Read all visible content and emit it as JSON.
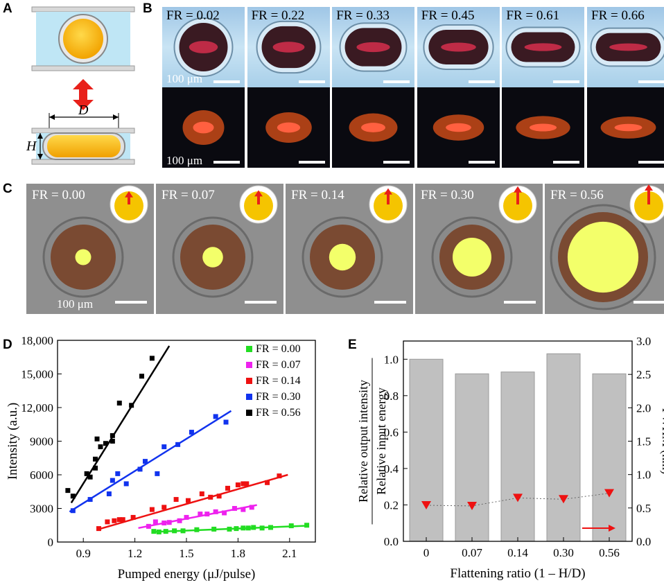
{
  "panels": {
    "a": "A",
    "b": "B",
    "c": "C",
    "d": "D",
    "e": "E"
  },
  "panel_a": {
    "diameter_label": "D",
    "height_label": "H"
  },
  "panel_b": {
    "tiles": [
      {
        "label": "FR = 0.02",
        "flat": 0.0
      },
      {
        "label": "FR = 0.22",
        "flat": 0.22
      },
      {
        "label": "FR = 0.33",
        "flat": 0.33
      },
      {
        "label": "FR = 0.45",
        "flat": 0.45
      },
      {
        "label": "FR = 0.61",
        "flat": 0.61
      },
      {
        "label": "FR = 0.66",
        "flat": 0.66
      }
    ],
    "scale_label": "100 μm"
  },
  "panel_c": {
    "tiles": [
      {
        "label": "FR = 0.00",
        "spot": 0.1,
        "arrow": 0.3
      },
      {
        "label": "FR = 0.07",
        "spot": 0.16,
        "arrow": 0.4
      },
      {
        "label": "FR = 0.14",
        "spot": 0.24,
        "arrow": 0.6
      },
      {
        "label": "FR = 0.30",
        "spot": 0.4,
        "arrow": 0.8
      },
      {
        "label": "FR = 0.56",
        "spot": 0.82,
        "arrow": 1.0
      }
    ],
    "scale_label": "100 μm"
  },
  "colors": {
    "green": "#22dd22",
    "magenta": "#ee22ee",
    "red": "#ee1111",
    "blue": "#1133ee",
    "black": "#000000",
    "bar": "#c0c0c0",
    "triangle": "#ee1111"
  },
  "chart_data": [
    {
      "type": "scatter",
      "xlabel": "Pumped energy (μJ/pulse)",
      "ylabel": "Intensity (a.u.)",
      "xlim": [
        0.75,
        2.25
      ],
      "ylim": [
        0,
        18000
      ],
      "xticks": [
        "0.9",
        "1.2",
        "1.5",
        "1.8",
        "2.1"
      ],
      "yticks": [
        "0",
        "3000",
        "6000",
        "9000",
        "12,000",
        "15,000",
        "18,000"
      ],
      "legend_position": "top-right",
      "series": [
        {
          "name": "FR = 0.00",
          "color": "#22dd22",
          "points": [
            [
              1.31,
              950
            ],
            [
              1.34,
              900
            ],
            [
              1.38,
              950
            ],
            [
              1.43,
              1000
            ],
            [
              1.48,
              1000
            ],
            [
              1.56,
              1100
            ],
            [
              1.66,
              1150
            ],
            [
              1.75,
              1150
            ],
            [
              1.79,
              1200
            ],
            [
              1.83,
              1250
            ],
            [
              1.86,
              1250
            ],
            [
              1.89,
              1300
            ],
            [
              1.94,
              1250
            ],
            [
              1.99,
              1300
            ],
            [
              2.11,
              1450
            ],
            [
              2.2,
              1500
            ]
          ],
          "fit": [
            [
              1.3,
              900
            ],
            [
              2.2,
              1450
            ]
          ]
        },
        {
          "name": "FR = 0.07",
          "color": "#ee22ee",
          "points": [
            [
              1.28,
              1400
            ],
            [
              1.32,
              1800
            ],
            [
              1.37,
              1700
            ],
            [
              1.4,
              1750
            ],
            [
              1.46,
              1900
            ],
            [
              1.5,
              2200
            ],
            [
              1.58,
              2500
            ],
            [
              1.62,
              2500
            ],
            [
              1.67,
              2700
            ],
            [
              1.72,
              2600
            ],
            [
              1.78,
              3000
            ],
            [
              1.83,
              2900
            ],
            [
              1.88,
              3100
            ]
          ],
          "fit": [
            [
              1.22,
              1250
            ],
            [
              1.91,
              3300
            ]
          ]
        },
        {
          "name": "FR = 0.14",
          "color": "#ee1111",
          "points": [
            [
              0.99,
              1200
            ],
            [
              1.04,
              1800
            ],
            [
              1.08,
              1900
            ],
            [
              1.11,
              2000
            ],
            [
              1.13,
              2000
            ],
            [
              1.19,
              2200
            ],
            [
              1.3,
              2900
            ],
            [
              1.37,
              3100
            ],
            [
              1.44,
              3800
            ],
            [
              1.51,
              3700
            ],
            [
              1.59,
              4300
            ],
            [
              1.64,
              4000
            ],
            [
              1.69,
              4100
            ],
            [
              1.74,
              4800
            ],
            [
              1.8,
              5100
            ],
            [
              1.83,
              5200
            ],
            [
              1.85,
              5200
            ],
            [
              1.97,
              5300
            ],
            [
              2.04,
              5900
            ]
          ],
          "fit": [
            [
              0.98,
              1100
            ],
            [
              2.09,
              6000
            ]
          ]
        },
        {
          "name": "FR = 0.30",
          "color": "#1133ee",
          "points": [
            [
              0.84,
              2800
            ],
            [
              0.94,
              3800
            ],
            [
              1.05,
              4300
            ],
            [
              1.07,
              5500
            ],
            [
              1.1,
              6100
            ],
            [
              1.15,
              5200
            ],
            [
              1.23,
              6500
            ],
            [
              1.26,
              7200
            ],
            [
              1.33,
              6100
            ],
            [
              1.37,
              8500
            ],
            [
              1.45,
              8700
            ],
            [
              1.53,
              9800
            ],
            [
              1.67,
              11200
            ],
            [
              1.73,
              10700
            ]
          ],
          "fit": [
            [
              0.82,
              2700
            ],
            [
              1.76,
              11700
            ]
          ]
        },
        {
          "name": "FR = 0.56",
          "color": "#000000",
          "points": [
            [
              0.81,
              4600
            ],
            [
              0.84,
              4100
            ],
            [
              0.92,
              6100
            ],
            [
              0.94,
              5800
            ],
            [
              0.97,
              6600
            ],
            [
              0.97,
              7400
            ],
            [
              0.98,
              9200
            ],
            [
              1.0,
              8500
            ],
            [
              1.03,
              8800
            ],
            [
              1.07,
              9000
            ],
            [
              1.07,
              9500
            ],
            [
              1.11,
              12400
            ],
            [
              1.18,
              12200
            ],
            [
              1.24,
              14800
            ],
            [
              1.3,
              16400
            ]
          ],
          "fit": [
            [
              0.83,
              3500
            ],
            [
              1.4,
              17500
            ]
          ]
        }
      ]
    },
    {
      "type": "bar",
      "xlabel": "Flattening ratio (1 – H/D)",
      "ylabel_top": "Relative output intensity",
      "ylabel_bottom": "Relative input energy",
      "ylabel_right": "FWHM (nm)",
      "categories": [
        "0",
        "0.07",
        "0.14",
        "0.30",
        "0.56"
      ],
      "values": [
        1.0,
        0.92,
        0.93,
        1.03,
        0.92
      ],
      "ylim": [
        0,
        1.1
      ],
      "yticks": [
        "0.0",
        "0.2",
        "0.4",
        "0.6",
        "0.8",
        "1.0"
      ],
      "ylim_right": [
        0,
        3.0
      ],
      "yticks_right": [
        "0.0",
        "0.5",
        "1.0",
        "1.5",
        "2.0",
        "2.5",
        "3.0"
      ],
      "fwhm": [
        0.54,
        0.53,
        0.65,
        0.63,
        0.72
      ]
    }
  ]
}
